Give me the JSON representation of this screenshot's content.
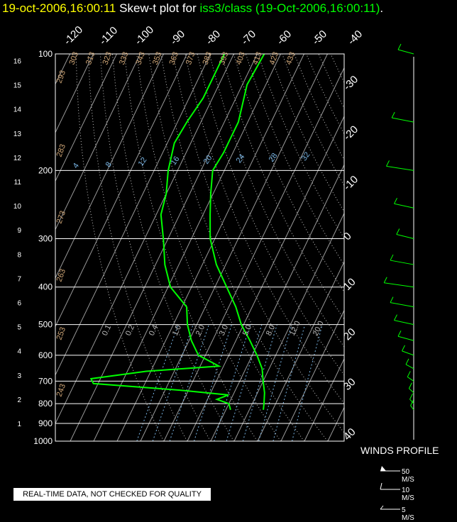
{
  "header": {
    "date_time": "19-oct-2006,16:00:11",
    "mid_text": "Skew-t plot for",
    "source": "iss3/class (19-Oct-2006,16:00:11)",
    "end": "."
  },
  "notice": "REAL-TIME DATA, NOT CHECKED FOR QUALITY",
  "winds": {
    "title": "WINDS PROFILE",
    "legend": [
      "50 M/S",
      "10 M/S",
      "5 M/S"
    ]
  },
  "colors": {
    "profile": "#00ff00",
    "isobar": "#ffffff",
    "title_date": "#ffff00",
    "dry_adiabat_label": "#d2a878",
    "mixing_ratio_label": "#7ab6e6"
  },
  "chart_data": {
    "type": "line",
    "title": "Skew-t plot for iss3/class (19-Oct-2006,16:00:11)",
    "pressure_labels": [
      "100",
      "200",
      "300",
      "400",
      "500",
      "600",
      "700",
      "800",
      "900",
      "1000"
    ],
    "height_labels": [
      "1",
      "2",
      "3",
      "4",
      "5",
      "6",
      "7",
      "8",
      "9",
      "10",
      "11",
      "12",
      "13",
      "14",
      "15",
      "16"
    ],
    "top_temp_labels": [
      "-120",
      "-110",
      "-100",
      "-90",
      "-80",
      "-70",
      "-60",
      "-50",
      "-40"
    ],
    "right_temp_labels": [
      "-30",
      "-20",
      "-10",
      "0",
      "10",
      "20",
      "30",
      "40"
    ],
    "dry_adiabat_labels": [
      "243",
      "253",
      "263",
      "273",
      "283",
      "293",
      "303",
      "313",
      "323",
      "333",
      "343",
      "353",
      "363",
      "373",
      "383",
      "393",
      "403",
      "413",
      "423",
      "433"
    ],
    "mixing_ratio_labels": [
      "4",
      "8",
      "12",
      "16",
      "20",
      "24",
      "28",
      "32"
    ],
    "lower_mixing_ratio_labels": [
      "0.1",
      "0.2",
      "0.4",
      "1.0",
      "2.0",
      "3.0",
      "5.0",
      "8.0",
      "12.0",
      "20.0"
    ],
    "series": [
      {
        "points": [
          [
            100,
            -67
          ],
          [
            120,
            -68
          ],
          [
            150,
            -64
          ],
          [
            180,
            -64
          ],
          [
            200,
            -65
          ],
          [
            230,
            -61
          ],
          [
            260,
            -57
          ],
          [
            300,
            -52
          ],
          [
            350,
            -44
          ],
          [
            400,
            -35
          ],
          [
            450,
            -27
          ],
          [
            500,
            -21
          ],
          [
            550,
            -14
          ],
          [
            600,
            -8
          ],
          [
            650,
            -3
          ],
          [
            700,
            0
          ],
          [
            750,
            3
          ],
          [
            800,
            5
          ],
          [
            830,
            6
          ]
        ]
      },
      {
        "points": [
          [
            100,
            -84
          ],
          [
            130,
            -84
          ],
          [
            150,
            -86
          ],
          [
            170,
            -87
          ],
          [
            200,
            -84
          ],
          [
            230,
            -80
          ],
          [
            260,
            -78
          ],
          [
            300,
            -72
          ],
          [
            350,
            -66
          ],
          [
            400,
            -59
          ],
          [
            450,
            -48
          ],
          [
            500,
            -44
          ],
          [
            550,
            -39
          ],
          [
            600,
            -33
          ],
          [
            640,
            -22
          ],
          [
            660,
            -52
          ],
          [
            690,
            -74
          ],
          [
            710,
            -72
          ],
          [
            740,
            -32
          ],
          [
            760,
            -12
          ],
          [
            780,
            -16
          ],
          [
            800,
            -10
          ],
          [
            830,
            -8
          ]
        ]
      }
    ],
    "wind_barbs": [
      [
        100,
        20
      ],
      [
        150,
        28
      ],
      [
        200,
        35
      ],
      [
        250,
        25
      ],
      [
        300,
        22
      ],
      [
        350,
        30
      ],
      [
        400,
        38
      ],
      [
        450,
        30
      ],
      [
        500,
        25
      ],
      [
        550,
        20
      ],
      [
        600,
        15
      ],
      [
        650,
        10
      ],
      [
        700,
        8
      ],
      [
        750,
        6
      ],
      [
        800,
        5
      ],
      [
        830,
        4
      ]
    ]
  }
}
